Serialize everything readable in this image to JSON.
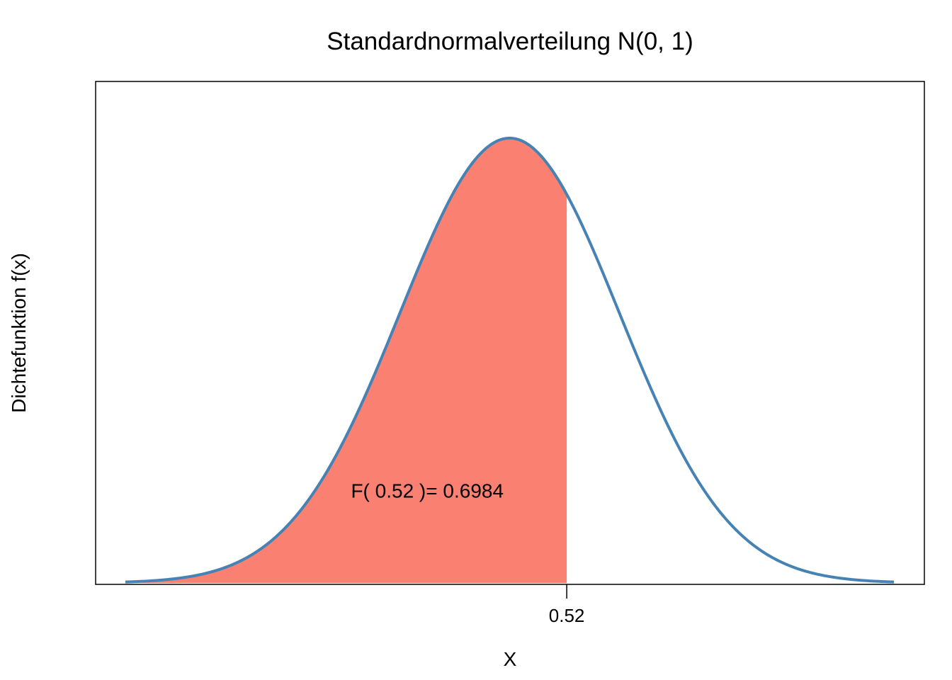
{
  "chart_data": {
    "type": "area",
    "title": "Standardnormalverteilung N(0, 1)",
    "xlabel": "X",
    "ylabel": "Dichtefunktion f(x)",
    "distribution": {
      "name": "normal",
      "mean": 0,
      "sd": 1
    },
    "xlim": [
      -3.5,
      3.5
    ],
    "ylim": [
      0,
      0.4
    ],
    "curve_range": [
      -3.5,
      3.5
    ],
    "shade_from": -3.5,
    "shade_to": 0.52,
    "x_ticks": [
      0.52
    ],
    "x_tick_labels": [
      "0.52"
    ],
    "annotation": {
      "text": "F( 0.52 )= 0.6984",
      "x": -0.75,
      "y": 0.0765
    },
    "colors": {
      "curve": "#4682B4",
      "shade": "#FA8072",
      "frame": "#000000"
    },
    "grid": false,
    "legend": "none"
  }
}
